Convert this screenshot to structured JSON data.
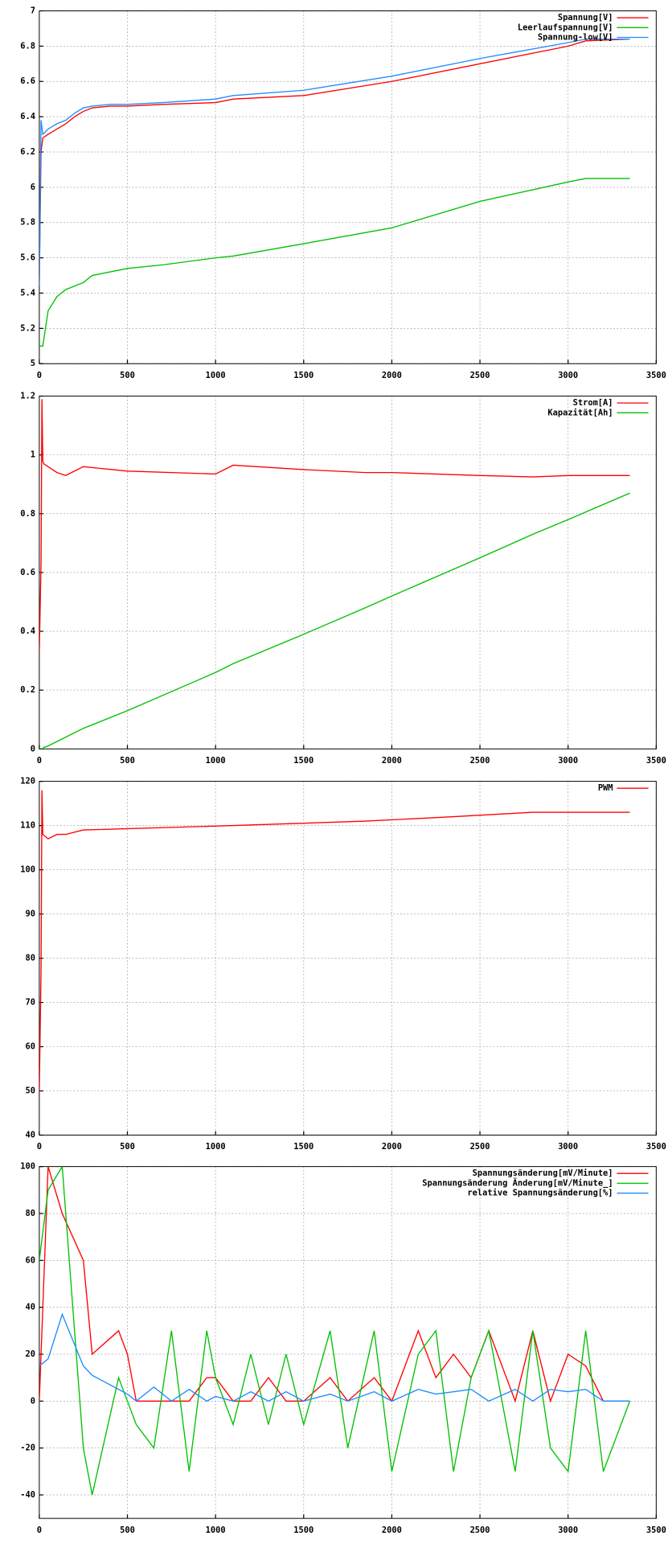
{
  "chart_data": [
    {
      "type": "line",
      "grid": true,
      "legend": "upper right",
      "xlim": [
        0,
        3500
      ],
      "xticks": [
        0,
        500,
        1000,
        1500,
        2000,
        2500,
        3000,
        3500
      ],
      "ylim": [
        5,
        7
      ],
      "yticks": [
        5,
        5.2,
        5.4,
        5.6,
        5.8,
        6,
        6.2,
        6.4,
        6.6,
        6.8,
        7
      ],
      "x": [
        0,
        10,
        20,
        50,
        100,
        150,
        200,
        250,
        300,
        400,
        500,
        700,
        1000,
        1100,
        1500,
        2000,
        2500,
        3000,
        3100,
        3350
      ],
      "series": [
        {
          "name": "Spannung[V]",
          "color": "#ff0000",
          "values": [
            5.45,
            6.2,
            6.28,
            6.3,
            6.33,
            6.36,
            6.4,
            6.43,
            6.45,
            6.46,
            6.46,
            6.47,
            6.48,
            6.5,
            6.52,
            6.6,
            6.7,
            6.8,
            6.83,
            6.84
          ]
        },
        {
          "name": "Leerlaufspannung[V]",
          "color": "#00c000",
          "values": [
            5.1,
            5.1,
            5.1,
            5.3,
            5.38,
            5.42,
            5.44,
            5.46,
            5.5,
            5.52,
            5.54,
            5.56,
            5.6,
            5.61,
            5.68,
            5.77,
            5.92,
            6.03,
            6.05,
            6.05
          ]
        },
        {
          "name": "Spannung-low[V]",
          "color": "#1e8cff",
          "values": [
            5.44,
            6.38,
            6.3,
            6.33,
            6.36,
            6.38,
            6.42,
            6.45,
            6.46,
            6.47,
            6.47,
            6.48,
            6.5,
            6.52,
            6.55,
            6.63,
            6.73,
            6.82,
            6.84,
            6.84
          ]
        }
      ]
    },
    {
      "type": "line",
      "grid": true,
      "legend": "upper right",
      "xlim": [
        0,
        3500
      ],
      "xticks": [
        0,
        500,
        1000,
        1500,
        2000,
        2500,
        3000,
        3500
      ],
      "ylim": [
        0,
        1.2
      ],
      "yticks": [
        0,
        0.2,
        0.4,
        0.6,
        0.8,
        1,
        1.2
      ],
      "x": [
        0,
        10,
        15,
        20,
        25,
        50,
        100,
        150,
        250,
        500,
        1000,
        1100,
        1500,
        1850,
        2000,
        2500,
        2800,
        3000,
        3350
      ],
      "series": [
        {
          "name": "Strom[A]",
          "color": "#ff0000",
          "values": [
            0.33,
            0.63,
            1.19,
            0.98,
            0.97,
            0.96,
            0.94,
            0.93,
            0.96,
            0.945,
            0.935,
            0.965,
            0.95,
            0.94,
            0.94,
            0.93,
            0.925,
            0.93,
            0.93
          ]
        },
        {
          "name": "Kapazität[Ah]",
          "color": "#00c000",
          "values": [
            0,
            0,
            0,
            0,
            0.005,
            0.01,
            0.025,
            0.04,
            0.07,
            0.13,
            0.26,
            0.29,
            0.39,
            0.48,
            0.52,
            0.65,
            0.73,
            0.78,
            0.87
          ]
        }
      ]
    },
    {
      "type": "line",
      "grid": true,
      "legend": "upper right",
      "xlim": [
        0,
        3500
      ],
      "xticks": [
        0,
        500,
        1000,
        1500,
        2000,
        2500,
        3000,
        3500
      ],
      "ylim": [
        40,
        120
      ],
      "yticks": [
        40,
        50,
        60,
        70,
        80,
        90,
        100,
        110,
        120
      ],
      "x": [
        0,
        10,
        15,
        20,
        50,
        100,
        150,
        250,
        1100,
        1850,
        2350,
        2800,
        3350
      ],
      "series": [
        {
          "name": "PWM",
          "color": "#ff0000",
          "values": [
            50,
            77,
            118,
            108,
            107,
            108,
            108,
            109,
            110,
            111,
            112,
            113,
            113
          ]
        }
      ]
    },
    {
      "type": "line",
      "grid": true,
      "legend": "upper right",
      "xlim": [
        0,
        3500
      ],
      "xticks": [
        0,
        500,
        1000,
        1500,
        2000,
        2500,
        3000,
        3500
      ],
      "ylim": [
        -50,
        100
      ],
      "yticks": [
        -40,
        -20,
        0,
        20,
        40,
        60,
        80,
        100
      ],
      "x": [
        0,
        50,
        130,
        250,
        300,
        450,
        500,
        550,
        650,
        750,
        850,
        950,
        1000,
        1100,
        1200,
        1300,
        1400,
        1500,
        1650,
        1750,
        1900,
        2000,
        2150,
        2250,
        2350,
        2450,
        2550,
        2700,
        2800,
        2900,
        3000,
        3100,
        3200,
        3350
      ],
      "series": [
        {
          "name": "Spannungsänderung[mV/Minute]",
          "color": "#ff0000",
          "values": [
            0,
            100,
            80,
            60,
            20,
            30,
            20,
            0,
            0,
            0,
            0,
            10,
            10,
            0,
            0,
            10,
            0,
            0,
            10,
            0,
            10,
            0,
            30,
            10,
            20,
            10,
            30,
            0,
            30,
            0,
            20,
            15,
            0,
            0
          ]
        },
        {
          "name": "Spannungsänderung Änderung[mV/Minute_]",
          "color": "#00c000",
          "values": [
            60,
            90,
            100,
            -20,
            -40,
            10,
            0,
            -10,
            -20,
            30,
            -30,
            30,
            10,
            -10,
            20,
            -10,
            20,
            -10,
            30,
            -20,
            30,
            -30,
            20,
            30,
            -30,
            10,
            30,
            -30,
            30,
            -20,
            -30,
            30,
            -30,
            0
          ]
        },
        {
          "name": "relative Spannungsänderung[%]",
          "color": "#1e8cff",
          "values": [
            15,
            18,
            37,
            15,
            11,
            5,
            3,
            0,
            6,
            0,
            5,
            0,
            2,
            0,
            4,
            0,
            4,
            0,
            3,
            0,
            4,
            0,
            5,
            3,
            4,
            5,
            0,
            5,
            0,
            5,
            4,
            5,
            0,
            0
          ]
        }
      ]
    }
  ]
}
